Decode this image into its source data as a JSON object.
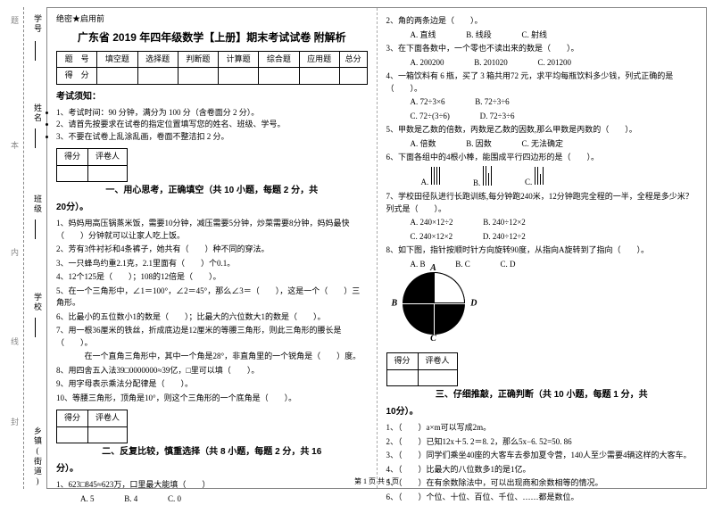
{
  "binding": {
    "labels": [
      "学号",
      "姓名",
      "班级",
      "学校",
      "乡镇(街道)"
    ],
    "hints": [
      "题",
      "本",
      "内",
      "线",
      "封"
    ]
  },
  "secret": "绝密★启用前",
  "title": "广东省 2019 年四年级数学【上册】期末考试试卷 附解析",
  "score_table": {
    "head": [
      "题　号",
      "填空题",
      "选择题",
      "判断题",
      "计算题",
      "综合题",
      "应用题",
      "总分"
    ],
    "row": "得　分"
  },
  "notice_title": "考试须知：",
  "notices": [
    "1、考试时间：90 分钟，满分为 100 分（含卷面分 2 分）。",
    "2、请首先按要求在试卷的指定位置填写您的姓名、班级、学号。",
    "3、不要在试卷上乱涂乱画，卷面不整洁扣 2 分。"
  ],
  "marker": {
    "c1": "得分",
    "c2": "评卷人"
  },
  "sec1_title": "一、用心思考，正确填空（共 10 小题，每题 2 分，共",
  "sec1_tail": "20分）。",
  "sec1": [
    "1、妈妈用高压锅蒸米饭，需要10分钟，减压需要5分钟，炒菜需要8分钟，妈妈最快（　　）分钟就可以让家人吃上饭。",
    "2、芳有3件衬衫和4条裤子，她共有（　　）种不同的穿法。",
    "3、一只蜂鸟约重2.1克，2.1里面有（　　）个0.1。",
    "4、12个125是（　　）；108的12倍是（　　）。",
    "5、在一个三角形中，∠1＝100°，∠2＝45°，那么∠3＝（　　），这是一个（　　）三角形。",
    "6、比最小的五位数小1的数是（　　）；比最大的六位数大1的数是（　　）。",
    "7、用一根36厘米的铁丝，折成底边是12厘米的等腰三角形，则此三角形的腰长是（　　）。",
    "　　在一个直角三角形中，其中一个角是28°，非直角里的一个锐角是（　　）度。",
    "8、用四舍五入法39□0000000≈39亿，□里可以填（　　）。",
    "9、用字母表示乘法分配律是（　　）。",
    "10、等腰三角形，顶角是10°，则这个三角形的一个底角是（　　）。"
  ],
  "sec2_title": "二、反复比较，慎重选择（共 8 小题，每题 2 分，共 16",
  "sec2_tail": "分）。",
  "s2q1": "1、623□845≈623万，口里最大能填（　　）",
  "s2q1_opts": [
    "A. 5",
    "B. 4",
    "C. 0"
  ],
  "s2q2": "2、角的两条边是（　　）。",
  "s2q2_opts": [
    "A. 直线",
    "B. 线段",
    "C. 射线"
  ],
  "s2q3": "3、在下面各数中，一个零也不读出来的数是（　　）。",
  "s2q3_opts": [
    "A. 200200",
    "B. 201020",
    "C. 201200"
  ],
  "s2q4": "4、一箱饮料有 6 瓶，买了 3 箱共用72 元，求平均每瓶饮料多少钱，列式正确的是（　　）。",
  "s2q4_opts": [
    "A. 72÷3×6",
    "B. 72÷3÷6",
    "C. 72÷(3÷6)",
    "D. 72÷3÷6"
  ],
  "s2q5": "5、甲数是乙数的倍数，丙数是乙数的因数,那么甲数是丙数的（　　）。",
  "s2q5_opts": [
    "A. 倍数",
    "B. 因数",
    "C. 无法确定"
  ],
  "s2q6": "6、下面各组中的4根小棒，能围成平行四边形的是（　　）。",
  "s2q6_labels": [
    "A.",
    "B.",
    "C."
  ],
  "s2q6_groups": [
    [
      20,
      20,
      20,
      20
    ],
    [
      22,
      22,
      14,
      22
    ],
    [
      20,
      20,
      12,
      20
    ]
  ],
  "s2q7": "7、学校田径队进行长跑训练,每分钟跑240米，12分钟跑完全程的一半，全程是多少米？列式是（　　）。",
  "s2q7_opts": [
    "A. 240×12÷2",
    "B. 240÷12×2",
    "C. 240×12×2",
    "D. 240÷12÷2"
  ],
  "s2q8": "8、如下图，指针按顺时针方向旋转90度，从指向A旋转到了指向（　　）。",
  "s2q8_opts": [
    "A. B",
    "B. C",
    "C. D"
  ],
  "compass_labels": {
    "a": "A",
    "b": "B",
    "c": "C",
    "d": "D"
  },
  "sec3_title": "三、仔细推敲，正确判断（共 10 小题，每题 1 分，共",
  "sec3_tail": "10分）。",
  "sec3": [
    "1、（　　）a×m可以写成2m。",
    "2、（　　）已知12x＋5. 2＝8. 2，那么5x−6. 52=50. 86",
    "3、（　　）同学们乘坐40座的大客车去参加夏令营，140人至少需要4辆这样的大客车。",
    "4、（　　）比最大的八位数多1的是1亿。",
    "5、（　　）在有余数除法中，可以出现商和余数相等的情况。",
    "6、（　　）个位、十位、百位、千位、……都是数位。"
  ],
  "footer": "第 1 页 共 4 页"
}
